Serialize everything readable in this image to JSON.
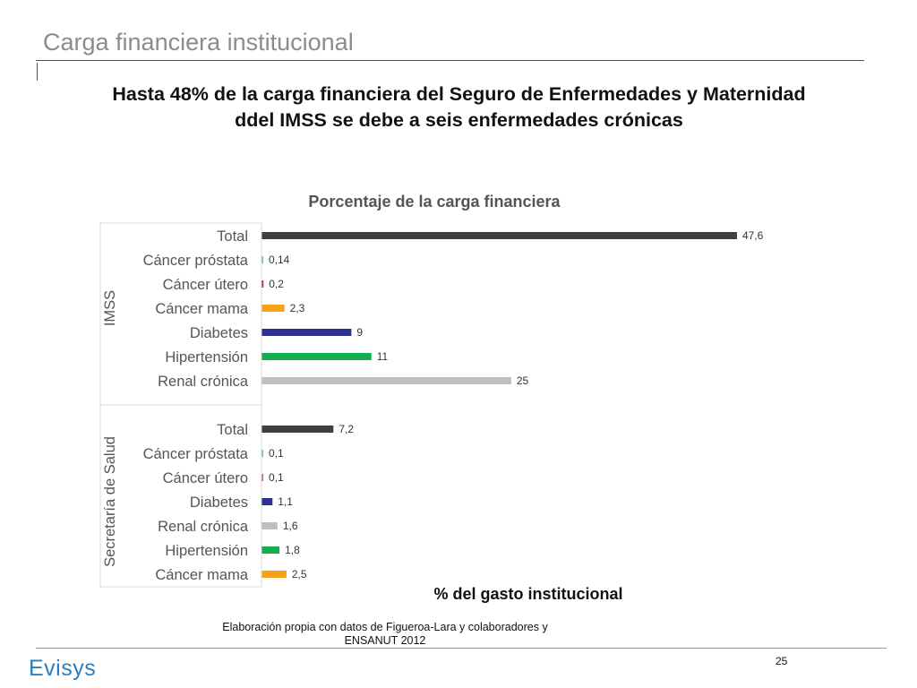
{
  "slide": {
    "title": "Carga financiera institucional",
    "headline_line1": "Hasta 48% de la carga financiera del Seguro de Enfermedades y Maternidad",
    "headline_line2": "ddel IMSS se debe a seis enfermedades crónicas",
    "source_line1": "Elaboración propia con datos de Figueroa-Lara  y colaboradores y",
    "source_line2": "ENSANUT 2012",
    "logo_text": "Evisys",
    "page_number": "25"
  },
  "chart_data": {
    "type": "bar",
    "orientation": "horizontal",
    "title": "Porcentaje de la carga financiera",
    "xlabel": "% del gasto institucional",
    "ylabel": "",
    "xlim": [
      0,
      48
    ],
    "grid": false,
    "legend": "none",
    "groups": [
      {
        "name": "IMSS",
        "bars": [
          {
            "category": "Total",
            "value": 47.6,
            "label": "47,6",
            "color": "#404040"
          },
          {
            "category": "Cáncer próstata",
            "value": 0.14,
            "label": "0,14",
            "color": "#4bc6e6"
          },
          {
            "category": "Cáncer útero",
            "value": 0.2,
            "label": "0,2",
            "color": "#c0282d"
          },
          {
            "category": "Cáncer mama",
            "value": 2.3,
            "label": "2,3",
            "color": "#f5a21a"
          },
          {
            "category": "Diabetes",
            "value": 9,
            "label": "9",
            "color": "#2e3192"
          },
          {
            "category": "Hipertensión",
            "value": 11,
            "label": "11",
            "color": "#12b04c"
          },
          {
            "category": "Renal crónica",
            "value": 25,
            "label": "25",
            "color": "#bfbfbf"
          }
        ]
      },
      {
        "name": "Secretaría de Salud",
        "bars": [
          {
            "category": "Total",
            "value": 7.2,
            "label": "7,2",
            "color": "#404040"
          },
          {
            "category": "Cáncer próstata",
            "value": 0.1,
            "label": "0,1",
            "color": "#4bc6e6"
          },
          {
            "category": "Cáncer útero",
            "value": 0.1,
            "label": "0,1",
            "color": "#e2586a"
          },
          {
            "category": "Diabetes",
            "value": 1.1,
            "label": "1,1",
            "color": "#2e3192"
          },
          {
            "category": "Renal crónica",
            "value": 1.6,
            "label": "1,6",
            "color": "#bfbfbf"
          },
          {
            "category": "Hipertensión",
            "value": 1.8,
            "label": "1,8",
            "color": "#12b04c"
          },
          {
            "category": "Cáncer mama",
            "value": 2.5,
            "label": "2,5",
            "color": "#f5a21a"
          }
        ]
      }
    ]
  }
}
